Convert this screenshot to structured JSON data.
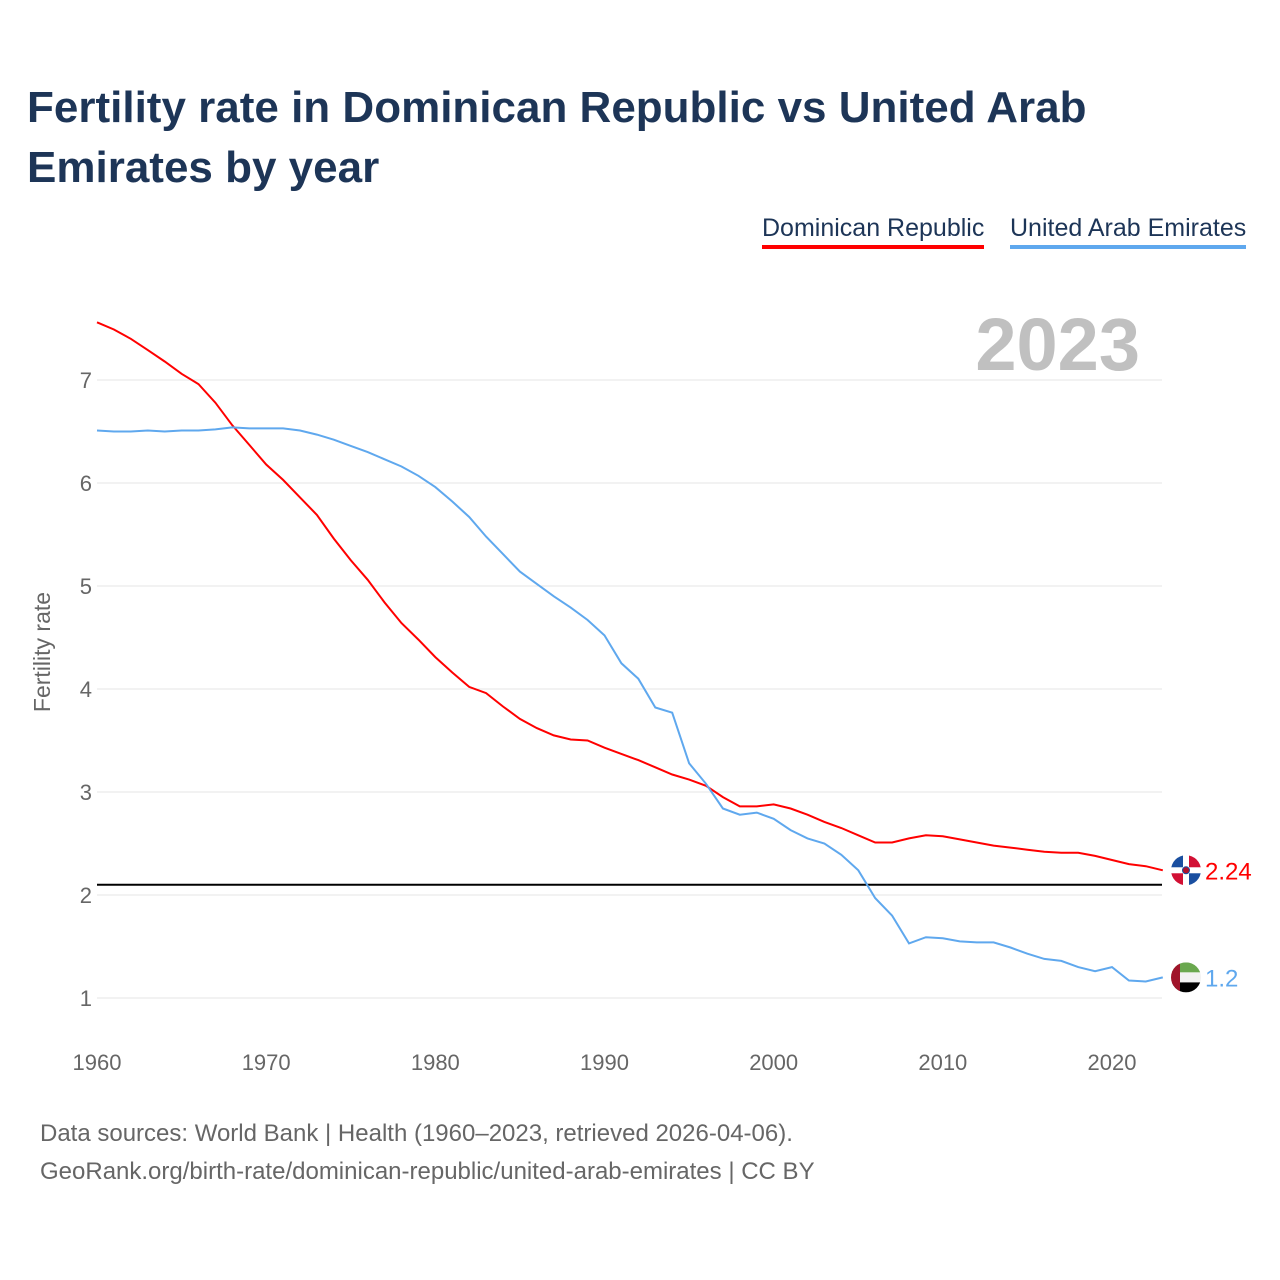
{
  "title": "Fertility rate in Dominican Republic vs United Arab Emirates by year",
  "footer": {
    "sources": "Data sources: World Bank | Health (1960–2023, retrieved 2026-04-06).",
    "credit": "GeoRank.org/birth-rate/dominican-republic/united-arab-emirates | CC BY"
  },
  "chart_data": {
    "type": "line",
    "title": "Fertility rate in Dominican Republic vs United Arab Emirates by year",
    "xlabel": "",
    "ylabel": "Fertility rate",
    "year_label": "2023",
    "xlim": [
      1960,
      2023
    ],
    "ylim": [
      0.6,
      7.6
    ],
    "x_ticks": [
      "1960",
      "1970",
      "1980",
      "1990",
      "2000",
      "2010",
      "2020"
    ],
    "y_ticks": [
      "1",
      "2",
      "3",
      "4",
      "5",
      "6",
      "7"
    ],
    "reference_line": 2.1,
    "legend_position": "top-right",
    "x": [
      1960,
      1961,
      1962,
      1963,
      1964,
      1965,
      1966,
      1967,
      1968,
      1969,
      1970,
      1971,
      1972,
      1973,
      1974,
      1975,
      1976,
      1977,
      1978,
      1979,
      1980,
      1981,
      1982,
      1983,
      1984,
      1985,
      1986,
      1987,
      1988,
      1989,
      1990,
      1991,
      1992,
      1993,
      1994,
      1995,
      1996,
      1997,
      1998,
      1999,
      2000,
      2001,
      2002,
      2003,
      2004,
      2005,
      2006,
      2007,
      2008,
      2009,
      2010,
      2011,
      2012,
      2013,
      2014,
      2015,
      2016,
      2017,
      2018,
      2019,
      2020,
      2021,
      2022,
      2023
    ],
    "series": [
      {
        "name": "Dominican Republic",
        "color": "#ff0000",
        "end_label": "2.24",
        "flag": "dominican-republic-flag",
        "values": [
          7.56,
          7.49,
          7.4,
          7.29,
          7.18,
          7.06,
          6.96,
          6.78,
          6.56,
          6.37,
          6.18,
          6.03,
          5.86,
          5.69,
          5.46,
          5.25,
          5.06,
          4.84,
          4.64,
          4.48,
          4.31,
          4.16,
          4.02,
          3.96,
          3.83,
          3.71,
          3.62,
          3.55,
          3.51,
          3.5,
          3.43,
          3.37,
          3.31,
          3.24,
          3.17,
          3.12,
          3.06,
          2.95,
          2.86,
          2.86,
          2.88,
          2.84,
          2.78,
          2.71,
          2.65,
          2.58,
          2.51,
          2.51,
          2.55,
          2.58,
          2.57,
          2.54,
          2.51,
          2.48,
          2.46,
          2.44,
          2.42,
          2.41,
          2.41,
          2.38,
          2.34,
          2.3,
          2.28,
          2.24
        ]
      },
      {
        "name": "United Arab Emirates",
        "color": "#5fa8ee",
        "end_label": "1.2",
        "flag": "uae-flag",
        "values": [
          6.51,
          6.5,
          6.5,
          6.51,
          6.5,
          6.51,
          6.51,
          6.52,
          6.54,
          6.53,
          6.53,
          6.53,
          6.51,
          6.47,
          6.42,
          6.36,
          6.3,
          6.23,
          6.16,
          6.07,
          5.96,
          5.82,
          5.67,
          5.48,
          5.31,
          5.14,
          5.02,
          4.9,
          4.79,
          4.67,
          4.52,
          4.25,
          4.1,
          3.82,
          3.77,
          3.28,
          3.08,
          2.84,
          2.78,
          2.8,
          2.74,
          2.63,
          2.55,
          2.5,
          2.39,
          2.24,
          1.97,
          1.8,
          1.53,
          1.59,
          1.58,
          1.55,
          1.54,
          1.54,
          1.49,
          1.43,
          1.38,
          1.36,
          1.3,
          1.26,
          1.3,
          1.17,
          1.16,
          1.2
        ]
      }
    ]
  }
}
